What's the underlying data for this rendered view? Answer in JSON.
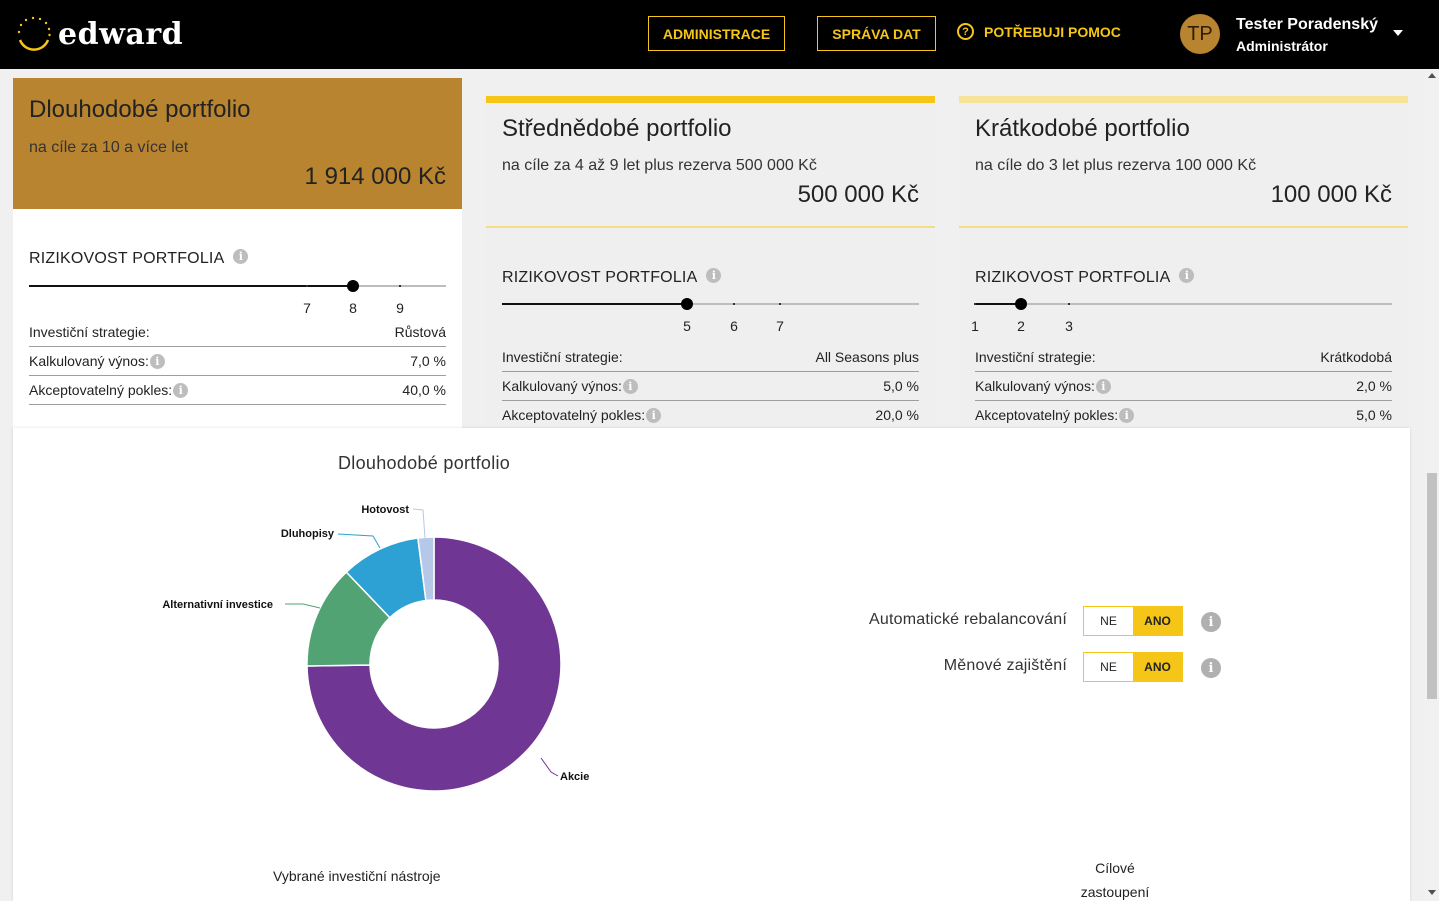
{
  "header": {
    "logo_text": "edward",
    "admin_label": "ADMINISTRACE",
    "data_label": "SPRÁVA DAT",
    "help_label": "POTŘEBUJI POMOC",
    "help_icon": "?",
    "user_initials": "TP",
    "user_name": "Tester Poradenský",
    "user_role": "Administrátor",
    "brand_color": "#f5c518"
  },
  "cards": [
    {
      "title": "Dlouhodobé portfolio",
      "subtitle": "na cíle za 10 a více let",
      "amount": "1 914 000 Kč",
      "risk_title": "RIZIKOVOST PORTFOLIA",
      "risk_ticks": [
        "7",
        "8",
        "9"
      ],
      "risk_value": 8,
      "rows": [
        {
          "label": "Investiční strategie:",
          "value": "Růstová"
        },
        {
          "label": "Kalkulovaný výnos:",
          "value": "7,0 %"
        },
        {
          "label": "Akceptovatelný pokles:",
          "value": "40,0 %"
        }
      ],
      "accent": "#b8842f"
    },
    {
      "title": "Střednědobé portfolio",
      "subtitle": "na cíle za 4 až 9 let plus rezerva 500 000 Kč",
      "amount": "500 000 Kč",
      "risk_title": "RIZIKOVOST PORTFOLIA",
      "risk_ticks": [
        "5",
        "6",
        "7"
      ],
      "risk_value": 5,
      "rows": [
        {
          "label": "Investiční strategie:",
          "value": "All Seasons plus"
        },
        {
          "label": "Kalkulovaný výnos:",
          "value": "5,0 %"
        },
        {
          "label": "Akceptovatelný pokles:",
          "value": "20,0 %"
        }
      ],
      "accent": "#f5c518"
    },
    {
      "title": "Krátkodobé portfolio",
      "subtitle": "na cíle do 3 let plus rezerva 100 000 Kč",
      "amount": "100 000 Kč",
      "risk_title": "RIZIKOVOST PORTFOLIA",
      "risk_ticks": [
        "1",
        "2",
        "3"
      ],
      "risk_value": 2,
      "rows": [
        {
          "label": "Investiční strategie:",
          "value": "Krátkodobá"
        },
        {
          "label": "Kalkulovaný výnos:",
          "value": "2,0 %"
        },
        {
          "label": "Akceptovatelný pokles:",
          "value": "5,0 %"
        }
      ],
      "accent": "#f7e29a"
    }
  ],
  "info_glyph": "i",
  "chart_data": {
    "type": "pie",
    "title": "Dlouhodobé portfolio",
    "categories": [
      "Akcie",
      "Alternativní investice",
      "Dluhopisy",
      "Hotovost"
    ],
    "values": [
      74,
      13,
      10,
      2
    ],
    "colors": [
      "#6f3693",
      "#52a374",
      "#2ea1d4",
      "#b6c8e8"
    ],
    "donut": true
  },
  "toggles": [
    {
      "label": "Automatické rebalancování",
      "off": "NE",
      "on": "ANO",
      "selected": "ANO"
    },
    {
      "label": "Měnové zajištění",
      "off": "NE",
      "on": "ANO",
      "selected": "ANO"
    }
  ],
  "footer": {
    "instruments_label": "Vybrané investiční nástroje",
    "target_line1": "Cílové",
    "target_line2": "zastoupení"
  }
}
